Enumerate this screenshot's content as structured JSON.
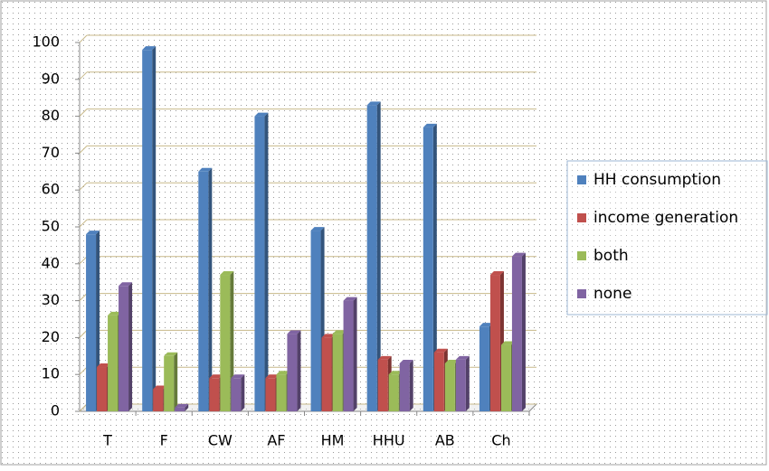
{
  "chart_data": {
    "type": "bar",
    "categories": [
      "T",
      "F",
      "CW",
      "AF",
      "HM",
      "HHU",
      "AB",
      "Ch"
    ],
    "series": [
      {
        "name": "HH consumption",
        "color": "#4f81bd",
        "values": [
          48,
          98,
          65,
          80,
          49,
          83,
          77,
          23
        ]
      },
      {
        "name": "income generation",
        "color": "#c0504d",
        "values": [
          12,
          6,
          9,
          9,
          20,
          14,
          16,
          37
        ]
      },
      {
        "name": "both",
        "color": "#9bbb59",
        "values": [
          26,
          15,
          37,
          10,
          21,
          10,
          13,
          18
        ]
      },
      {
        "name": "none",
        "color": "#8064a2",
        "values": [
          34,
          1,
          9,
          21,
          30,
          13,
          14,
          42
        ]
      }
    ],
    "ylim": [
      0,
      100
    ],
    "yticks": [
      0,
      10,
      20,
      30,
      40,
      50,
      60,
      70,
      80,
      90,
      100
    ],
    "grid": true,
    "legend": "right"
  }
}
